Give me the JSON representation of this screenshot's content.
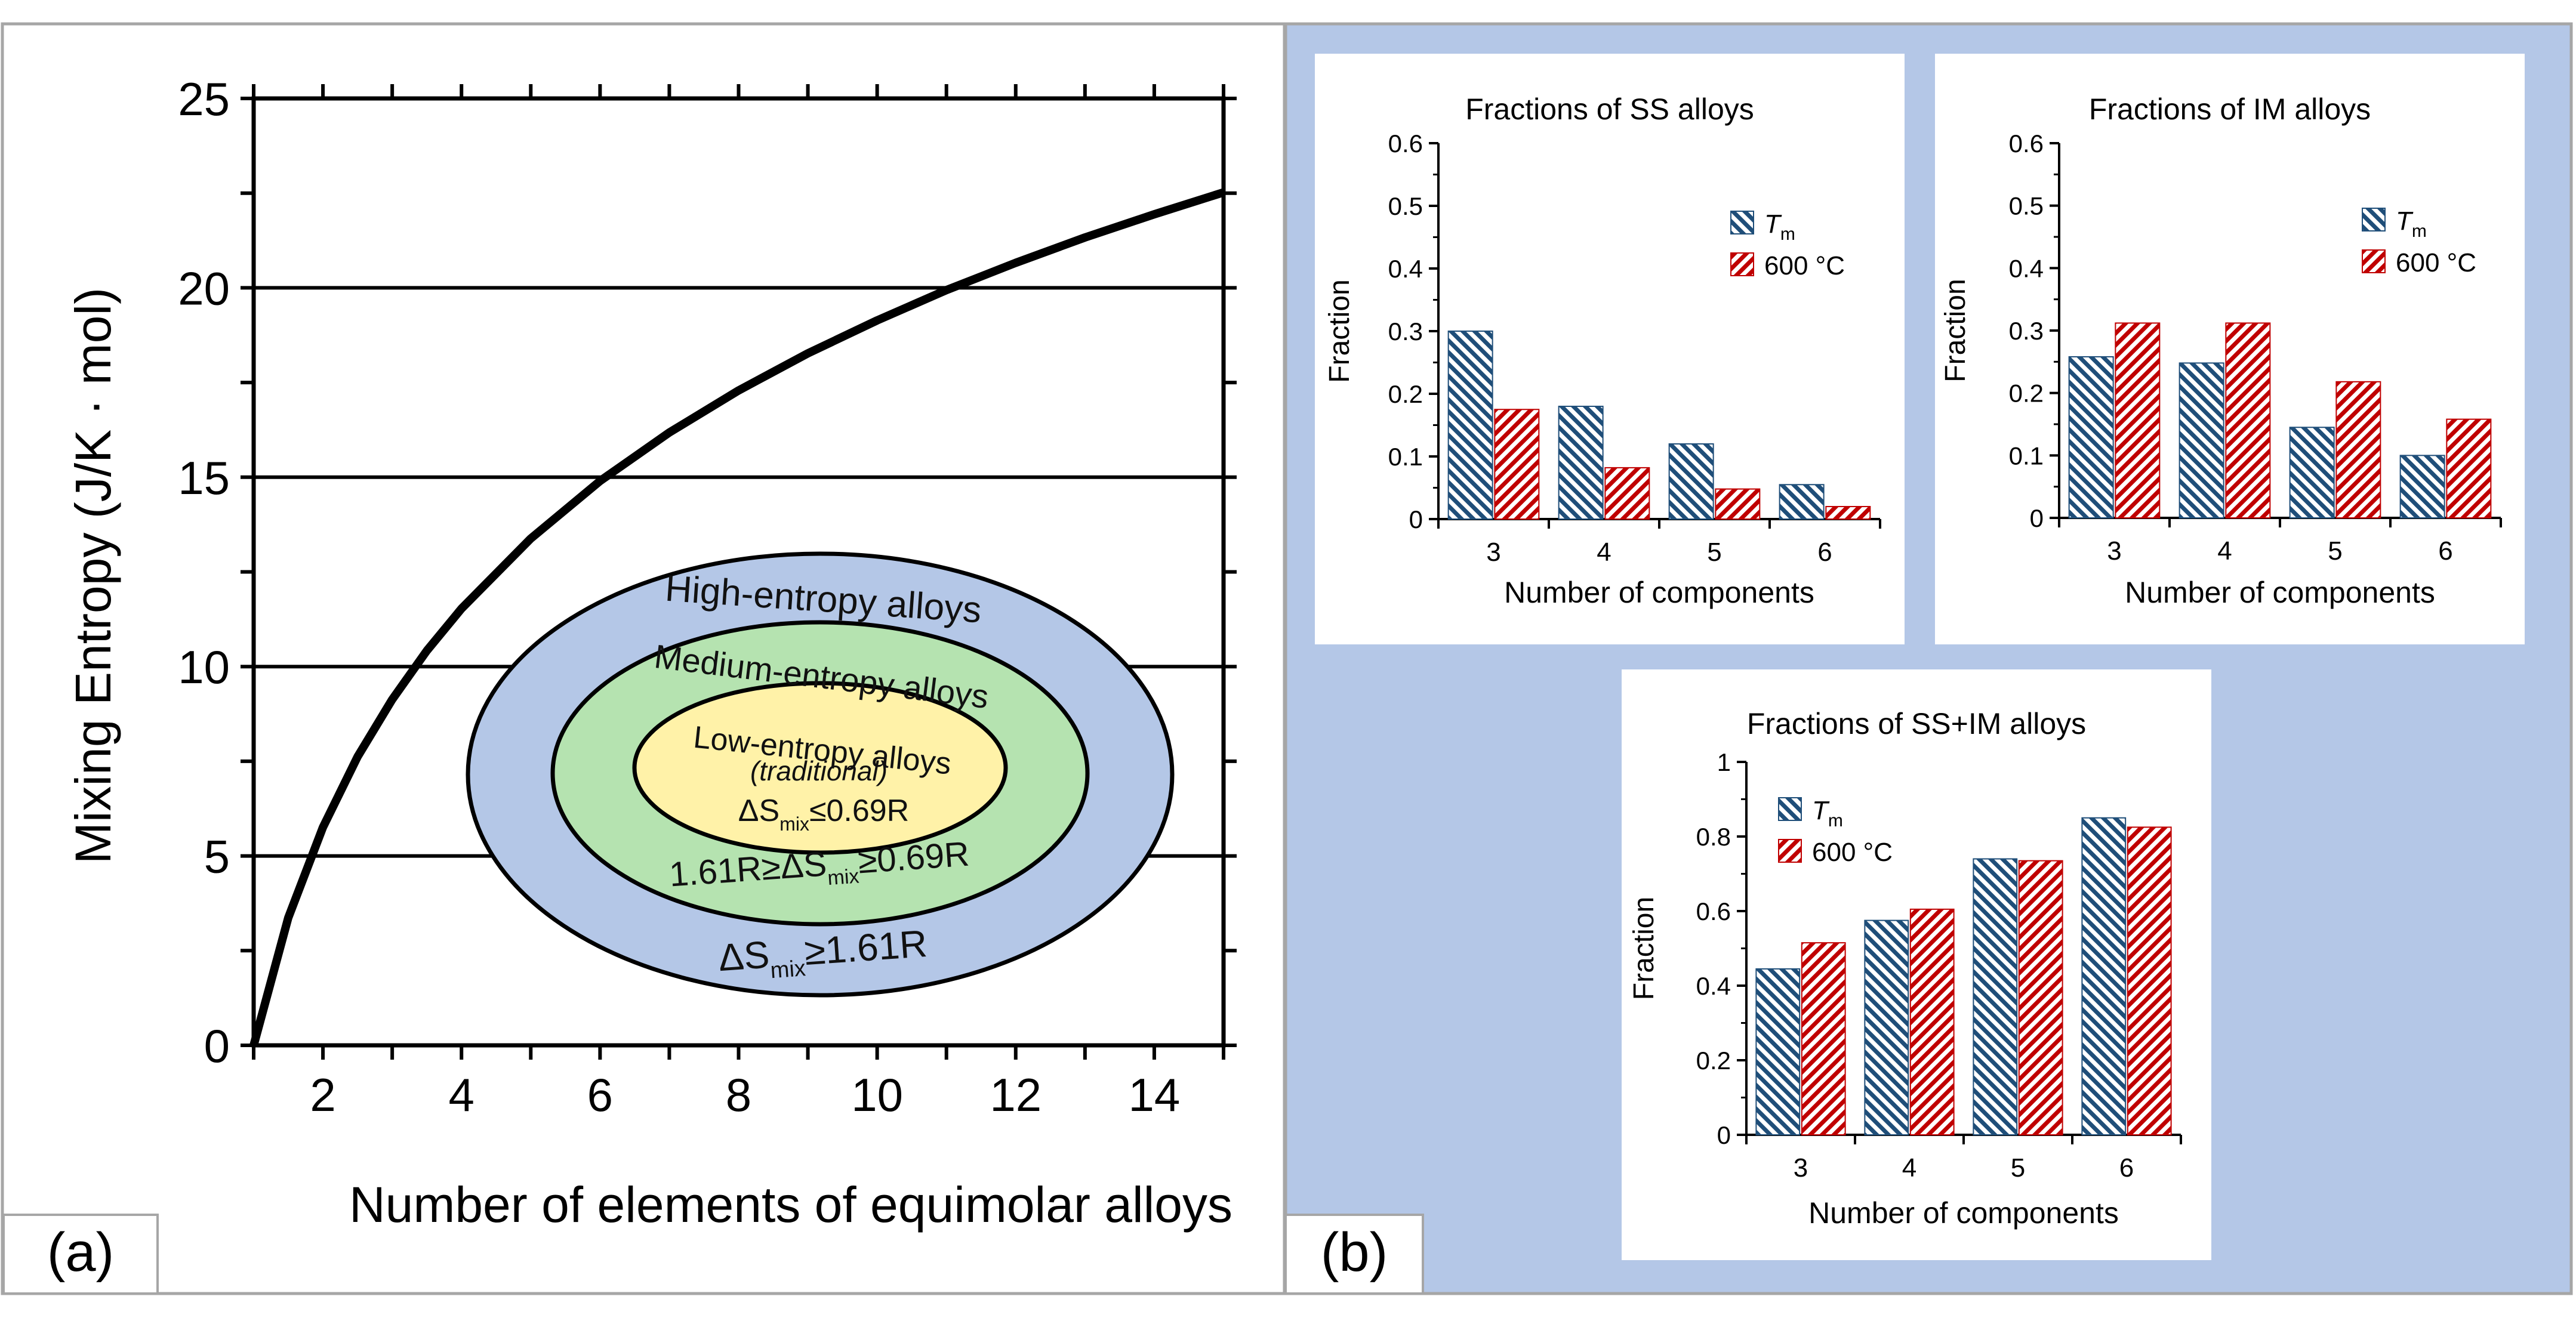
{
  "panels": {
    "a_label": "(a)",
    "b_label": "(b)"
  },
  "colors": {
    "border": "#a6a6a6",
    "panel_b_bg": "#b4c7e7",
    "blue_bar": "#1f4e79",
    "red_bar": "#c00000",
    "outer_ellipse": "#b4c7e7",
    "middle_ellipse": "#b5e3b0",
    "inner_ellipse": "#fff2a8"
  },
  "ellipse_labels": {
    "high_title": "High-entropy alloys",
    "high_cond_pre": "ΔS",
    "high_cond_sub": "mix",
    "high_cond_post": "≥1.61R",
    "medium_title": "Medium-entropy alloys",
    "medium_cond_pre": "1.61R≥ΔS",
    "medium_cond_sub": "mix",
    "medium_cond_post": "≥0.69R",
    "low_title": "Low-entropy alloys",
    "low_subtitle": "(traditional)",
    "low_cond_pre": "ΔS",
    "low_cond_sub": "mix",
    "low_cond_post": "≤0.69R"
  },
  "chart_data": [
    {
      "id": "mixing-entropy",
      "type": "line",
      "title": "",
      "xlabel": "Number of elements of equimolar alloys",
      "ylabel": "Mixing Entropy (J/K · mol)",
      "xlim": [
        1,
        15
      ],
      "ylim": [
        0,
        25
      ],
      "xticks": [
        2,
        4,
        6,
        8,
        10,
        12,
        14
      ],
      "yticks": [
        0,
        5,
        10,
        15,
        20,
        25
      ],
      "grid": "horizontal",
      "x": [
        1,
        1.5,
        2,
        2.5,
        3,
        3.5,
        4,
        5,
        6,
        7,
        8,
        9,
        10,
        11,
        12,
        13,
        14,
        15
      ],
      "y": [
        0,
        3.37,
        5.76,
        7.62,
        9.13,
        10.42,
        11.53,
        13.38,
        14.9,
        16.18,
        17.29,
        18.27,
        19.14,
        19.94,
        20.66,
        21.33,
        21.94,
        22.52
      ]
    },
    {
      "id": "ss-alloys",
      "type": "bar",
      "title": "Fractions of SS alloys",
      "xlabel": "Number of components",
      "ylabel": "Fraction",
      "categories": [
        "3",
        "4",
        "5",
        "6"
      ],
      "ylim": [
        0,
        0.6
      ],
      "yticks": [
        "0",
        "0.1",
        "0.2",
        "0.3",
        "0.4",
        "0.5",
        "0.6"
      ],
      "legend_position": "top-right",
      "series": [
        {
          "name": "T",
          "sub": "m",
          "values": [
            0.3,
            0.18,
            0.12,
            0.055
          ]
        },
        {
          "name": "600 °C",
          "values": [
            0.175,
            0.082,
            0.048,
            0.02
          ]
        }
      ]
    },
    {
      "id": "im-alloys",
      "type": "bar",
      "title": "Fractions of IM alloys",
      "xlabel": "Number of components",
      "ylabel": "Fraction",
      "categories": [
        "3",
        "4",
        "5",
        "6"
      ],
      "ylim": [
        0,
        0.6
      ],
      "yticks": [
        "0",
        "0.1",
        "0.2",
        "0.3",
        "0.4",
        "0.5",
        "0.6"
      ],
      "legend_position": "top-right",
      "series": [
        {
          "name": "T",
          "sub": "m",
          "values": [
            0.258,
            0.248,
            0.145,
            0.1
          ]
        },
        {
          "name": "600 °C",
          "values": [
            0.312,
            0.312,
            0.218,
            0.158
          ]
        }
      ]
    },
    {
      "id": "ss-im-alloys",
      "type": "bar",
      "title": "Fractions of SS+IM alloys",
      "xlabel": "Number of components",
      "ylabel": "Fraction",
      "categories": [
        "3",
        "4",
        "5",
        "6"
      ],
      "ylim": [
        0,
        1
      ],
      "yticks": [
        "0",
        "0.2",
        "0.4",
        "0.6",
        "0.8",
        "1"
      ],
      "legend_position": "top-left",
      "series": [
        {
          "name": "T",
          "sub": "m",
          "values": [
            0.445,
            0.575,
            0.74,
            0.85
          ]
        },
        {
          "name": "600 °C",
          "values": [
            0.515,
            0.605,
            0.735,
            0.825
          ]
        }
      ]
    }
  ]
}
